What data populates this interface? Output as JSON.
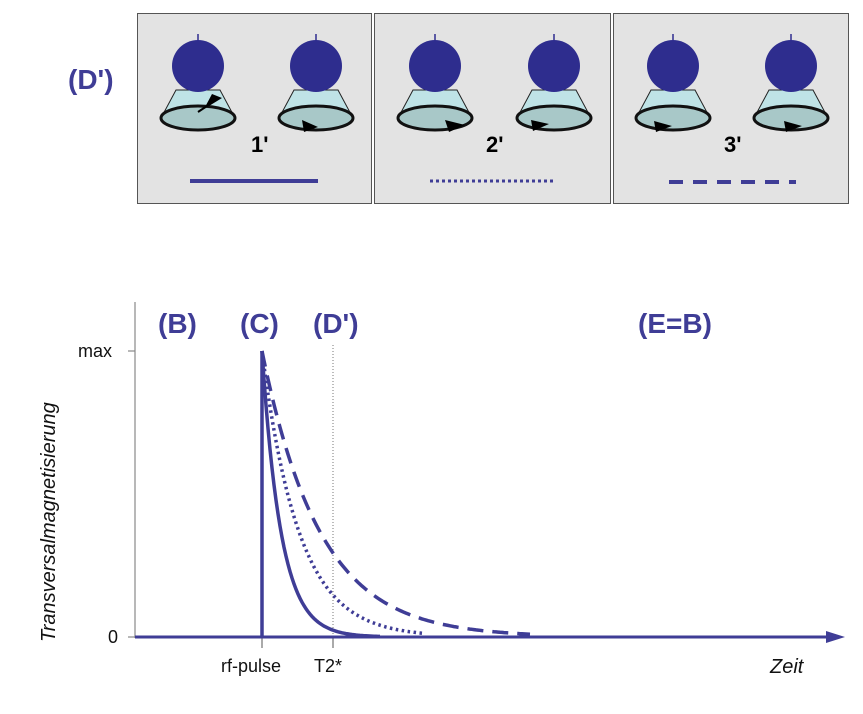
{
  "top": {
    "label": "(D')",
    "panels": [
      {
        "number": "1'",
        "line_style": "solid"
      },
      {
        "number": "2'",
        "line_style": "dotted"
      },
      {
        "number": "3'",
        "line_style": "dashed"
      }
    ]
  },
  "graph": {
    "phases": [
      "(B)",
      "(C)",
      "(D')",
      "(E=B)"
    ],
    "y_axis_label": "Transversalmagnetisierung",
    "x_axis_label": "Zeit",
    "y_ticks": {
      "max": "max",
      "zero": "0"
    },
    "x_ticks": {
      "rf_pulse": "rf-pulse",
      "t2star": "T2*"
    }
  },
  "colors": {
    "accent": "#3f3d96",
    "spin": "#2e2d8e",
    "cone": "#bfe3e6",
    "panel_bg": "#e3e3e3"
  }
}
